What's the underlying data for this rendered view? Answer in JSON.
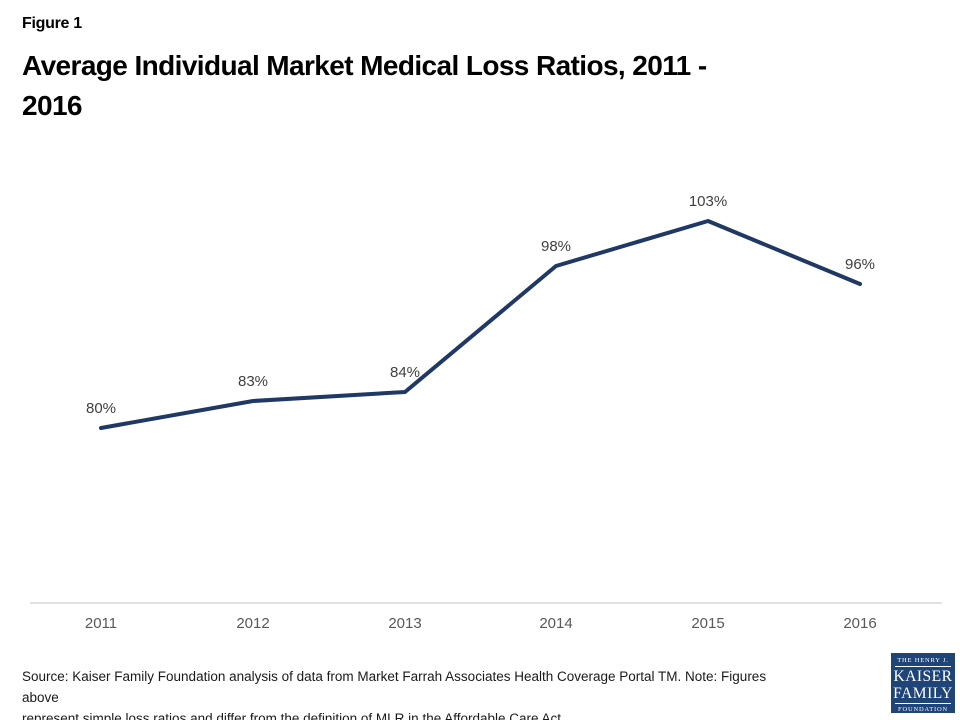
{
  "figure_label": "Figure 1",
  "title": {
    "line1": "Average Individual Market Medical Loss Ratios, 2011 -",
    "line2": "2016"
  },
  "chart_data": {
    "type": "line",
    "title": "Average Individual Market Medical Loss Ratios, 2011 - 2016",
    "categories": [
      "2011",
      "2012",
      "2013",
      "2014",
      "2015",
      "2016"
    ],
    "values": [
      80,
      83,
      84,
      98,
      103,
      96
    ],
    "data_labels": [
      "80%",
      "83%",
      "84%",
      "98%",
      "103%",
      "96%"
    ],
    "xlabel": "",
    "ylabel": "",
    "ylim": [
      60,
      110
    ],
    "grid": false,
    "legend": false,
    "line_color": "#1f3864",
    "axis_color": "#d9d9d9"
  },
  "source": {
    "line1": "Source: Kaiser Family Foundation analysis of data from Market Farrah Associates Health Coverage Portal TM. Note: Figures above",
    "line2": "represent simple loss ratios and differ from the definition of MLR in the Affordable Care Act"
  },
  "logo": {
    "top": "THE HENRY J.",
    "name1": "KAISER",
    "name2": "FAMILY",
    "bottom": "FOUNDATION",
    "bg_color": "#1e4478"
  }
}
